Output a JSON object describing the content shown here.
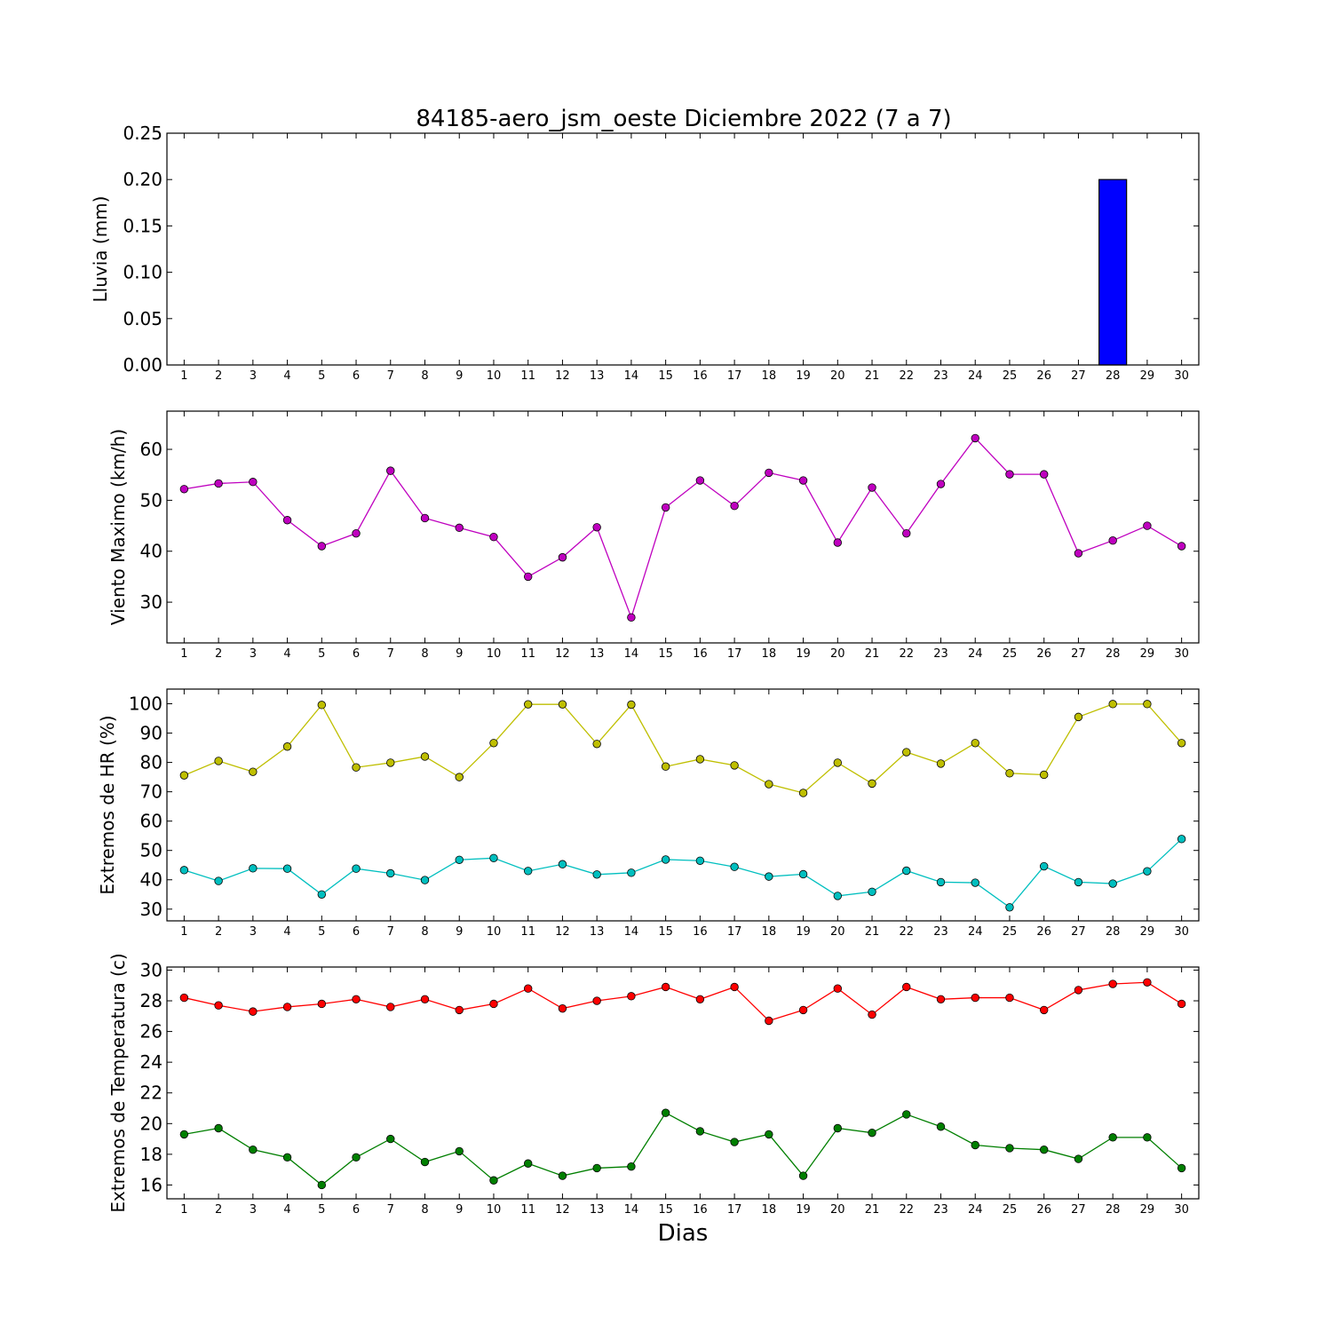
{
  "chart_data": [
    {
      "type": "bar",
      "title": "84185-aero_jsm_oeste Diciembre 2022  (7 a 7)",
      "ylabel": "Lluvia (mm)",
      "xlabel": "",
      "x": [
        1,
        2,
        3,
        4,
        5,
        6,
        7,
        8,
        9,
        10,
        11,
        12,
        13,
        14,
        15,
        16,
        17,
        18,
        19,
        20,
        21,
        22,
        23,
        24,
        25,
        26,
        27,
        28,
        29,
        30
      ],
      "ylim": [
        0,
        0.25
      ],
      "yticks": [
        "0.00",
        "0.05",
        "0.10",
        "0.15",
        "0.20",
        "0.25"
      ],
      "series": [
        {
          "color": "#0000ff",
          "values": [
            0,
            0,
            0,
            0,
            0,
            0,
            0,
            0,
            0,
            0,
            0,
            0,
            0,
            0,
            0,
            0,
            0,
            0,
            0,
            0,
            0,
            0,
            0,
            0,
            0,
            0,
            0,
            0.2,
            0,
            0
          ]
        }
      ]
    },
    {
      "type": "line",
      "title": "",
      "ylabel": "Viento Maximo (km/h)",
      "xlabel": "",
      "x": [
        1,
        2,
        3,
        4,
        5,
        6,
        7,
        8,
        9,
        10,
        11,
        12,
        13,
        14,
        15,
        16,
        17,
        18,
        19,
        20,
        21,
        22,
        23,
        24,
        25,
        26,
        27,
        28,
        29,
        30
      ],
      "ylim": [
        22,
        67.5
      ],
      "yticks": [
        "30",
        "40",
        "50",
        "60"
      ],
      "series": [
        {
          "color": "#bf00bf",
          "values": [
            52.2,
            53.3,
            53.6,
            46.1,
            41.0,
            43.5,
            55.8,
            46.5,
            44.6,
            42.8,
            35.0,
            38.8,
            44.7,
            27.0,
            48.6,
            53.9,
            48.9,
            55.4,
            53.9,
            41.7,
            52.5,
            43.5,
            53.2,
            62.2,
            55.1,
            55.1,
            39.6,
            42.1,
            45.0,
            41.0
          ]
        }
      ]
    },
    {
      "type": "line",
      "title": "",
      "ylabel": "Extremos de HR (%)",
      "xlabel": "",
      "x": [
        1,
        2,
        3,
        4,
        5,
        6,
        7,
        8,
        9,
        10,
        11,
        12,
        13,
        14,
        15,
        16,
        17,
        18,
        19,
        20,
        21,
        22,
        23,
        24,
        25,
        26,
        27,
        28,
        29,
        30
      ],
      "ylim": [
        26,
        105
      ],
      "yticks": [
        "30",
        "40",
        "50",
        "60",
        "70",
        "80",
        "90",
        "100"
      ],
      "series": [
        {
          "color": "#bfbf00",
          "values": [
            75.6,
            80.5,
            76.8,
            85.4,
            99.6,
            78.3,
            79.9,
            82.0,
            75.0,
            86.6,
            99.8,
            99.8,
            86.3,
            99.7,
            78.6,
            81.1,
            79.0,
            72.6,
            69.6,
            79.9,
            72.8,
            83.5,
            79.6,
            86.6,
            76.3,
            75.8,
            95.5,
            99.9,
            99.9,
            86.6
          ]
        },
        {
          "color": "#00bfbf",
          "values": [
            43.3,
            39.6,
            43.9,
            43.8,
            35.0,
            43.8,
            42.2,
            39.9,
            46.8,
            47.4,
            43.0,
            45.3,
            41.8,
            42.4,
            46.9,
            46.5,
            44.4,
            41.1,
            41.9,
            34.5,
            35.9,
            43.1,
            39.2,
            39.0,
            30.6,
            44.6,
            39.2,
            38.7,
            42.9,
            53.9
          ]
        }
      ]
    },
    {
      "type": "line",
      "title": "",
      "ylabel": "Extremos de Temperatura (c)",
      "xlabel": "Dias",
      "x": [
        1,
        2,
        3,
        4,
        5,
        6,
        7,
        8,
        9,
        10,
        11,
        12,
        13,
        14,
        15,
        16,
        17,
        18,
        19,
        20,
        21,
        22,
        23,
        24,
        25,
        26,
        27,
        28,
        29,
        30
      ],
      "ylim": [
        15.1,
        30.2
      ],
      "yticks": [
        "16",
        "18",
        "20",
        "22",
        "24",
        "26",
        "28",
        "30"
      ],
      "series": [
        {
          "color": "#ff0000",
          "values": [
            28.2,
            27.7,
            27.3,
            27.6,
            27.8,
            28.1,
            27.6,
            28.1,
            27.4,
            27.8,
            28.8,
            27.5,
            28.0,
            28.3,
            28.9,
            28.1,
            28.9,
            26.7,
            27.4,
            28.8,
            27.1,
            28.9,
            28.1,
            28.2,
            28.2,
            27.4,
            28.7,
            29.1,
            29.2,
            27.8
          ]
        },
        {
          "color": "#007f00",
          "values": [
            19.3,
            19.7,
            18.3,
            17.8,
            16.0,
            17.8,
            19.0,
            17.5,
            18.2,
            16.3,
            17.4,
            16.6,
            17.1,
            17.2,
            20.7,
            19.5,
            18.8,
            19.3,
            16.6,
            19.7,
            19.4,
            20.6,
            19.8,
            18.6,
            18.4,
            18.3,
            17.7,
            19.1,
            19.1,
            17.1
          ]
        }
      ]
    }
  ]
}
